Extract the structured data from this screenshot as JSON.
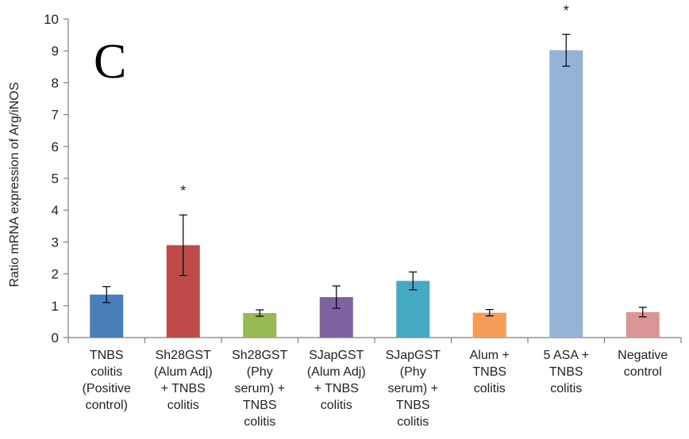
{
  "chart_data": {
    "type": "bar",
    "panel_label": "C",
    "ylabel": "Ratio mRNA expression of Arg/iNOS",
    "ylim": [
      0,
      10
    ],
    "yticks": [
      0,
      1,
      2,
      3,
      4,
      5,
      6,
      7,
      8,
      9,
      10
    ],
    "categories": [
      [
        "TNBS",
        "colitis",
        "(Positive",
        "control)"
      ],
      [
        "Sh28GST",
        "(Alum Adj)",
        "+ TNBS",
        "colitis"
      ],
      [
        "Sh28GST",
        "(Phy",
        "serum) +",
        "TNBS",
        "colitis"
      ],
      [
        "SJapGST",
        "(Alum Adj)",
        "+ TNBS",
        "colitis"
      ],
      [
        "SJapGST",
        "(Phy",
        "serum) +",
        "TNBS",
        "colitis"
      ],
      [
        "Alum +",
        "TNBS",
        "colitis"
      ],
      [
        "5 ASA +",
        "TNBS",
        "colitis"
      ],
      [
        "Negative",
        "control"
      ]
    ],
    "values": [
      1.35,
      2.9,
      0.77,
      1.27,
      1.78,
      0.78,
      9.02,
      0.8
    ],
    "errors": [
      0.25,
      0.95,
      0.1,
      0.35,
      0.28,
      0.1,
      0.5,
      0.15
    ],
    "significance": [
      "",
      "*",
      "",
      "",
      "",
      "",
      "*",
      ""
    ],
    "colors": [
      "#4a7ebb",
      "#be4b48",
      "#98b954",
      "#7e62a1",
      "#46aac5",
      "#f59d56",
      "#95b3d7",
      "#d99694"
    ],
    "grid": false,
    "legend": "none"
  }
}
